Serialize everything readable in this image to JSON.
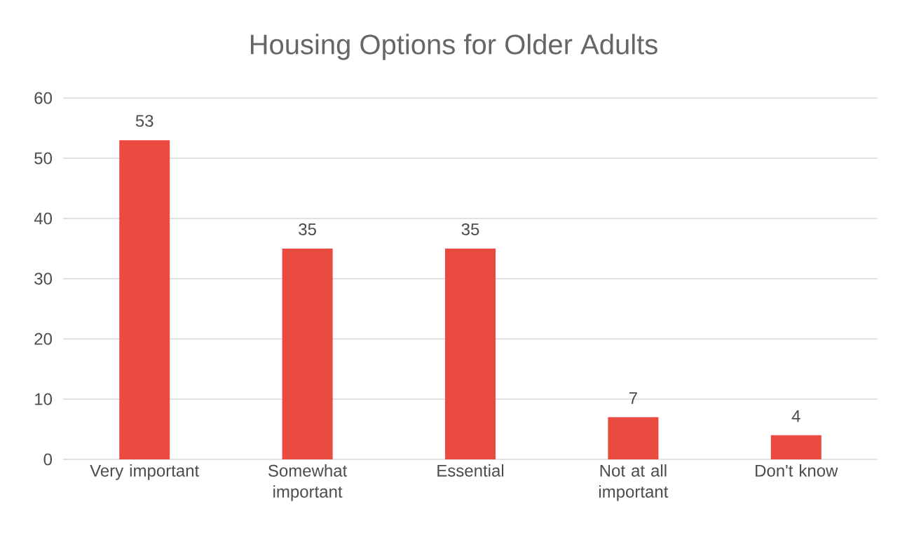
{
  "chart_data": {
    "type": "bar",
    "title": "Housing Options for Older Adults",
    "categories": [
      "Very important",
      "Somewhat important",
      "Essential",
      "Not at all important",
      "Don't know"
    ],
    "values": [
      53,
      35,
      35,
      7,
      4
    ],
    "color": "#ea4a3f",
    "ylim": [
      0,
      60
    ],
    "yticks": [
      0,
      10,
      20,
      30,
      40,
      50,
      60
    ],
    "grid": "y",
    "data_labels": true
  }
}
